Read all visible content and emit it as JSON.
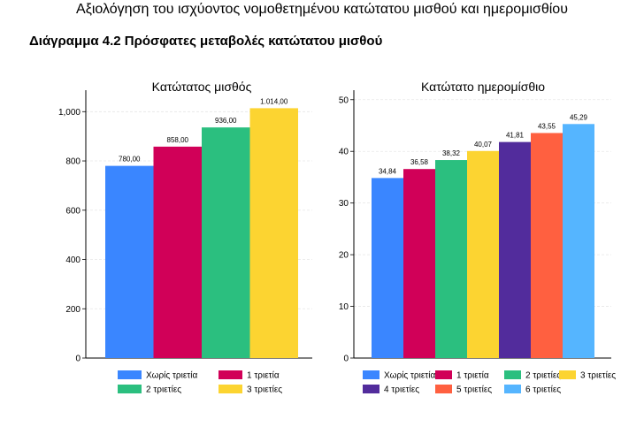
{
  "doc_title": "Αξιολόγηση του ισχύοντος νομοθετημένου κατώτατου μισθού και ημερομισθίου",
  "figure_title": "Διάγραμμα 4.2 Πρόσφατες μεταβολές κατώτατου μισθού",
  "chart_data": [
    {
      "type": "bar",
      "title": "Κατώτατος μισθός",
      "ylim": [
        0,
        1080
      ],
      "yticks": [
        0,
        200,
        400,
        600,
        800,
        1000
      ],
      "ytick_labels": [
        "0",
        "200",
        "400",
        "600",
        "800",
        "1,000"
      ],
      "grid": true,
      "legend": "bottom",
      "series": [
        {
          "name": "Χωρίς τριετία",
          "value": 780,
          "label": "780,00",
          "color": "#3a86ff"
        },
        {
          "name": "1 τριετία",
          "value": 858,
          "label": "858,00",
          "color": "#d10058"
        },
        {
          "name": "2 τριετίες",
          "value": 936,
          "label": "936,00",
          "color": "#2bbf7f"
        },
        {
          "name": "3 τριετίες",
          "value": 1014,
          "label": "1.014,00",
          "color": "#fcd431"
        }
      ]
    },
    {
      "type": "bar",
      "title": "Κατώτατο ημερομίσθιο",
      "ylim": [
        0,
        51.5
      ],
      "yticks": [
        0,
        10,
        20,
        30,
        40,
        50
      ],
      "ytick_labels": [
        "0",
        "10",
        "20",
        "30",
        "40",
        "50"
      ],
      "grid": true,
      "legend": "bottom",
      "series": [
        {
          "name": "Χωρίς τριετία",
          "value": 34.84,
          "label": "34,84",
          "color": "#3a86ff"
        },
        {
          "name": "1 τριετία",
          "value": 36.58,
          "label": "36,58",
          "color": "#d10058"
        },
        {
          "name": "2 τριετίες",
          "value": 38.32,
          "label": "38,32",
          "color": "#2bbf7f"
        },
        {
          "name": "3 τριετίες",
          "value": 40.07,
          "label": "40,07",
          "color": "#fcd431"
        },
        {
          "name": "4 τριετίες",
          "value": 41.81,
          "label": "41,81",
          "color": "#522c9c"
        },
        {
          "name": "5 τριετίες",
          "value": 43.55,
          "label": "43,55",
          "color": "#ff6040"
        },
        {
          "name": "6 τριετίες",
          "value": 45.29,
          "label": "45,29",
          "color": "#55b5ff"
        }
      ]
    }
  ]
}
